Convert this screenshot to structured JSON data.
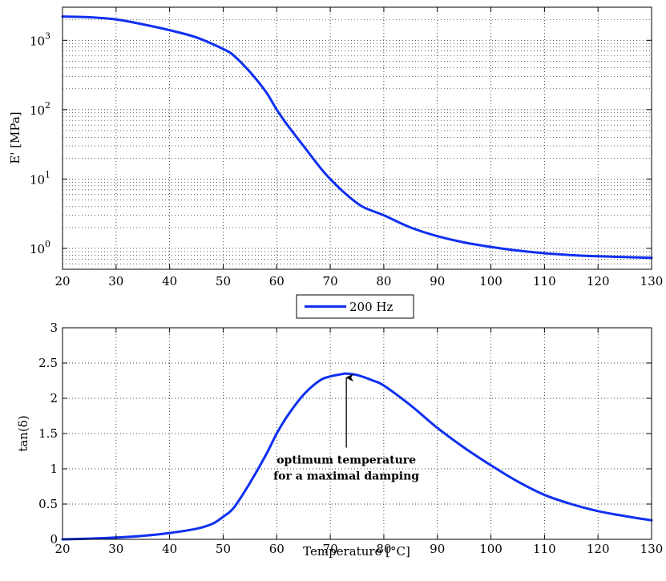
{
  "chart_data": [
    {
      "type": "line",
      "scale_y": "log",
      "xlabel": "",
      "ylabel": "E' [MPa]",
      "xlim": [
        20,
        130
      ],
      "ylim": [
        0.5,
        3000
      ],
      "xticks": [
        "20",
        "30",
        "40",
        "50",
        "60",
        "70",
        "80",
        "90",
        "100",
        "110",
        "120",
        "130"
      ],
      "yticks": [
        {
          "value": 1,
          "base": "10",
          "exp": "0"
        },
        {
          "value": 10,
          "base": "10",
          "exp": "1"
        },
        {
          "value": 100,
          "base": "10",
          "exp": "2"
        },
        {
          "value": 1000,
          "base": "10",
          "exp": "3"
        }
      ],
      "grid": true,
      "series": [
        {
          "name": "200 Hz",
          "color": "#1030f0",
          "x": [
            20,
            25,
            30,
            35,
            40,
            45,
            50,
            52,
            55,
            58,
            60,
            62,
            65,
            68,
            70,
            73,
            76,
            80,
            85,
            90,
            95,
            100,
            105,
            110,
            115,
            120,
            125,
            130
          ],
          "y": [
            2200,
            2150,
            2000,
            1700,
            1400,
            1100,
            750,
            600,
            350,
            180,
            100,
            60,
            30,
            15,
            10,
            6,
            4,
            3,
            2,
            1.5,
            1.22,
            1.05,
            0.93,
            0.85,
            0.8,
            0.77,
            0.75,
            0.73
          ]
        }
      ]
    },
    {
      "type": "line",
      "xlabel": "Temperature [°C]",
      "ylabel": "tan(δ)",
      "xlim": [
        20,
        130
      ],
      "ylim": [
        0,
        3
      ],
      "xticks": [
        "20",
        "30",
        "40",
        "50",
        "60",
        "70",
        "80",
        "90",
        "100",
        "110",
        "120",
        "130"
      ],
      "yticks": [
        "0",
        "0.5",
        "1",
        "1.5",
        "2",
        "2.5",
        "3"
      ],
      "grid": true,
      "series": [
        {
          "name": "200 Hz",
          "color": "#1030f0",
          "x": [
            20,
            25,
            30,
            35,
            40,
            45,
            48,
            50,
            52,
            55,
            58,
            60,
            62,
            65,
            68,
            70,
            72,
            73,
            75,
            78,
            80,
            85,
            90,
            95,
            100,
            105,
            110,
            115,
            120,
            125,
            130
          ],
          "y": [
            0,
            0.01,
            0.025,
            0.05,
            0.09,
            0.15,
            0.22,
            0.32,
            0.45,
            0.8,
            1.2,
            1.5,
            1.75,
            2.05,
            2.25,
            2.31,
            2.34,
            2.35,
            2.33,
            2.25,
            2.18,
            1.9,
            1.58,
            1.3,
            1.05,
            0.82,
            0.63,
            0.5,
            0.4,
            0.33,
            0.27
          ]
        }
      ],
      "annotation": {
        "lines": [
          "optimum temperature",
          "for a maximal damping"
        ],
        "arrow_to": {
          "x": 73,
          "y": 2.35
        },
        "arrow_from": {
          "x": 73,
          "y": 1.3
        }
      }
    }
  ],
  "legend": {
    "placement": "between-plots",
    "label": "200 Hz",
    "color": "#1030f0"
  }
}
